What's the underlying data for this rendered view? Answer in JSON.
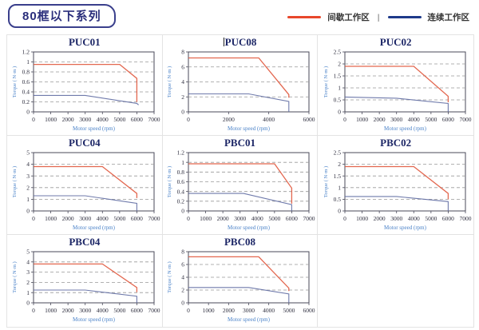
{
  "header": {
    "title": "80框以下系列"
  },
  "legend": {
    "intermittent_label": "间歇工作区",
    "separator": "|",
    "continuous_label": "连续工作区"
  },
  "colors": {
    "intermittent": "#e8472b",
    "continuous": "#1e3a8a",
    "curve_intermittent": "#e0573c",
    "curve_continuous": "#5f6ca2",
    "grid_line": "#999999",
    "plot_border": "#4a4a5a"
  },
  "axis_defaults": {
    "x_label": "Motor speed (rpm)",
    "y_label": "Torque ( N·m )"
  },
  "chart_data": [
    {
      "type": "line",
      "title": "PUC01",
      "xlabel": "Motor speed (rpm)",
      "ylabel": "Torque ( N·m )",
      "xlim": [
        0,
        7000
      ],
      "ylim": [
        0,
        1.2
      ],
      "xticks": [
        0,
        1000,
        2000,
        3000,
        4000,
        5000,
        6000,
        7000
      ],
      "yticks": [
        0,
        0.2,
        0.4,
        0.6,
        0.8,
        1,
        1.2
      ],
      "grid": "dashed-horizontal",
      "series": [
        {
          "name": "间歇工作区",
          "role": "intermittent",
          "points": [
            [
              0,
              0.95
            ],
            [
              5000,
              0.95
            ],
            [
              6000,
              0.67
            ],
            [
              6000,
              0.2
            ]
          ]
        },
        {
          "name": "连续工作区",
          "role": "continuous",
          "points": [
            [
              0,
              0.33
            ],
            [
              3000,
              0.33
            ],
            [
              6000,
              0.17
            ],
            [
              6100,
              0.14
            ]
          ]
        }
      ]
    },
    {
      "type": "line",
      "title": "PUC08",
      "cursor": "|",
      "xlabel": "Motor speed (rpm)",
      "ylabel": "Torque ( N·m )",
      "xlim": [
        0,
        6000
      ],
      "ylim": [
        0,
        8
      ],
      "xticks": [
        0,
        2000,
        4000,
        6000
      ],
      "yticks": [
        0,
        2,
        4,
        6,
        8
      ],
      "grid": "dashed-horizontal",
      "series": [
        {
          "name": "间歇工作区",
          "role": "intermittent",
          "points": [
            [
              0,
              7.2
            ],
            [
              3500,
              7.2
            ],
            [
              5000,
              2.3
            ],
            [
              5000,
              1.9
            ]
          ]
        },
        {
          "name": "连续工作区",
          "role": "continuous",
          "points": [
            [
              0,
              2.4
            ],
            [
              3000,
              2.4
            ],
            [
              5000,
              1.4
            ],
            [
              5000,
              0
            ]
          ]
        }
      ]
    },
    {
      "type": "line",
      "title": "PUC02",
      "xlabel": "Motor speed (rpm)",
      "ylabel": "Torque ( N·m )",
      "xlim": [
        0,
        7000
      ],
      "ylim": [
        0,
        2.5
      ],
      "xticks": [
        0,
        1000,
        2000,
        3000,
        4000,
        5000,
        6000,
        7000
      ],
      "yticks": [
        0,
        0.5,
        1,
        1.5,
        2,
        2.5
      ],
      "grid": "dashed-horizontal",
      "series": [
        {
          "name": "间歇工作区",
          "role": "intermittent",
          "points": [
            [
              0,
              1.9
            ],
            [
              4000,
              1.9
            ],
            [
              6000,
              0.65
            ],
            [
              6000,
              0.4
            ]
          ]
        },
        {
          "name": "连续工作区",
          "role": "continuous",
          "points": [
            [
              0,
              0.62
            ],
            [
              3000,
              0.57
            ],
            [
              6000,
              0.35
            ],
            [
              6000,
              0
            ]
          ]
        }
      ]
    },
    {
      "type": "line",
      "title": "PUC04",
      "xlabel": "Motor speed (rpm)",
      "ylabel": "Torque ( N·m )",
      "xlim": [
        0,
        7000
      ],
      "ylim": [
        0,
        5
      ],
      "xticks": [
        0,
        1000,
        2000,
        3000,
        4000,
        5000,
        6000,
        7000
      ],
      "yticks": [
        0,
        1,
        2,
        3,
        4,
        5
      ],
      "grid": "dashed-horizontal",
      "series": [
        {
          "name": "间歇工作区",
          "role": "intermittent",
          "points": [
            [
              0,
              3.8
            ],
            [
              4000,
              3.8
            ],
            [
              6000,
              1.5
            ],
            [
              6000,
              1.1
            ]
          ]
        },
        {
          "name": "连续工作区",
          "role": "continuous",
          "points": [
            [
              0,
              1.3
            ],
            [
              3000,
              1.3
            ],
            [
              6000,
              0.65
            ],
            [
              6000,
              0
            ]
          ]
        }
      ]
    },
    {
      "type": "line",
      "title": "PBC01",
      "xlabel": "Motor speed (rpm)",
      "ylabel": "Torque ( N·m )",
      "xlim": [
        0,
        7000
      ],
      "ylim": [
        0,
        1.2
      ],
      "xticks": [
        0,
        1000,
        2000,
        3000,
        4000,
        5000,
        6000,
        7000
      ],
      "yticks": [
        0,
        0.2,
        0.4,
        0.6,
        0.8,
        1,
        1.2
      ],
      "grid": "dashed-horizontal",
      "series": [
        {
          "name": "间歇工作区",
          "role": "intermittent",
          "points": [
            [
              0,
              0.97
            ],
            [
              5000,
              0.97
            ],
            [
              6000,
              0.47
            ],
            [
              6000,
              0.15
            ]
          ]
        },
        {
          "name": "连续工作区",
          "role": "continuous",
          "points": [
            [
              0,
              0.36
            ],
            [
              3200,
              0.36
            ],
            [
              6000,
              0.13
            ],
            [
              6000,
              0
            ]
          ]
        }
      ]
    },
    {
      "type": "line",
      "title": "PBC02",
      "xlabel": "Motor speed (rpm)",
      "ylabel": "Torque ( N·m )",
      "xlim": [
        0,
        7000
      ],
      "ylim": [
        0,
        2.5
      ],
      "xticks": [
        0,
        1000,
        2000,
        3000,
        4000,
        5000,
        6000,
        7000
      ],
      "yticks": [
        0,
        0.5,
        1,
        1.5,
        2,
        2.5
      ],
      "grid": "dashed-horizontal",
      "series": [
        {
          "name": "间歇工作区",
          "role": "intermittent",
          "points": [
            [
              0,
              1.9
            ],
            [
              4000,
              1.9
            ],
            [
              6000,
              0.75
            ],
            [
              6000,
              0.5
            ]
          ]
        },
        {
          "name": "连续工作区",
          "role": "continuous",
          "points": [
            [
              0,
              0.62
            ],
            [
              3000,
              0.62
            ],
            [
              6000,
              0.4
            ],
            [
              6000,
              0
            ]
          ]
        }
      ]
    },
    {
      "type": "line",
      "title": "PBC04",
      "xlabel": "Motor speed (rpm)",
      "ylabel": "Torque ( N·m )",
      "xlim": [
        0,
        7000
      ],
      "ylim": [
        0,
        5
      ],
      "xticks": [
        0,
        1000,
        2000,
        3000,
        4000,
        5000,
        6000,
        7000
      ],
      "yticks": [
        0,
        1,
        2,
        3,
        4,
        5
      ],
      "grid": "dashed-horizontal",
      "series": [
        {
          "name": "间歇工作区",
          "role": "intermittent",
          "points": [
            [
              0,
              3.8
            ],
            [
              4000,
              3.8
            ],
            [
              6000,
              1.5
            ],
            [
              6000,
              1.05
            ]
          ]
        },
        {
          "name": "连续工作区",
          "role": "continuous",
          "points": [
            [
              0,
              1.25
            ],
            [
              3000,
              1.25
            ],
            [
              6000,
              0.65
            ],
            [
              6000,
              0
            ]
          ]
        }
      ]
    },
    {
      "type": "line",
      "title": "PBC08",
      "xlabel": "Motor speed (rpm)",
      "ylabel": "Torque ( N·m )",
      "xlim": [
        0,
        6000
      ],
      "ylim": [
        0,
        8
      ],
      "xticks": [
        0,
        1000,
        2000,
        3000,
        4000,
        5000,
        6000
      ],
      "yticks": [
        0,
        2,
        4,
        6,
        8
      ],
      "grid": "dashed-horizontal",
      "series": [
        {
          "name": "间歇工作区",
          "role": "intermittent",
          "points": [
            [
              0,
              7.2
            ],
            [
              3500,
              7.2
            ],
            [
              5000,
              2.3
            ],
            [
              5000,
              1.85
            ]
          ]
        },
        {
          "name": "连续工作区",
          "role": "continuous",
          "points": [
            [
              0,
              2.4
            ],
            [
              3000,
              2.4
            ],
            [
              5000,
              1.4
            ],
            [
              5000,
              0
            ]
          ]
        }
      ]
    }
  ]
}
